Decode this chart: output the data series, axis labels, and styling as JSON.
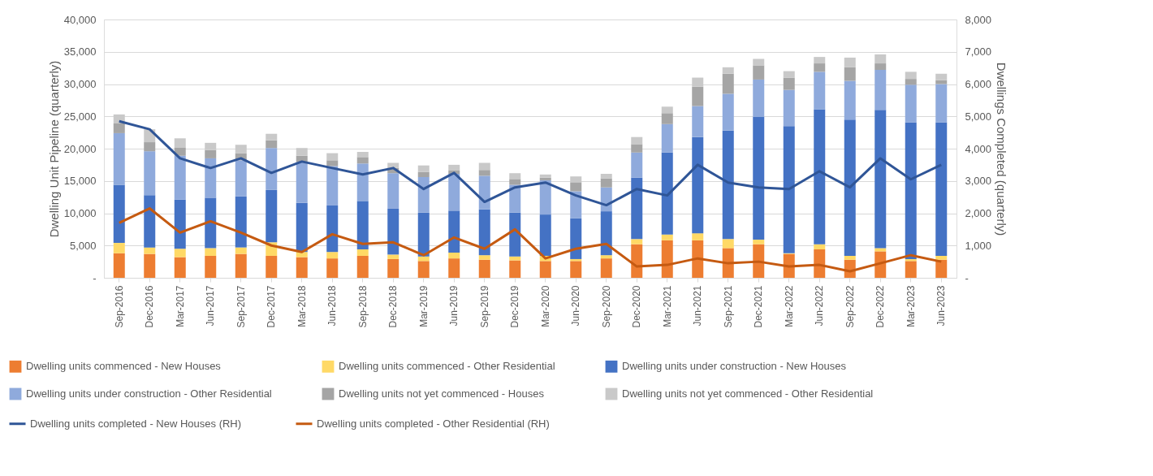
{
  "chart_data": {
    "type": "bar",
    "stacked": true,
    "categories": [
      "Sep-2016",
      "Dec-2016",
      "Mar-2017",
      "Jun-2017",
      "Sep-2017",
      "Dec-2017",
      "Mar-2018",
      "Jun-2018",
      "Sep-2018",
      "Dec-2018",
      "Mar-2019",
      "Jun-2019",
      "Sep-2019",
      "Dec-2019",
      "Mar-2020",
      "Jun-2020",
      "Sep-2020",
      "Dec-2020",
      "Mar-2021",
      "Jun-2021",
      "Sep-2021",
      "Dec-2021",
      "Mar-2022",
      "Jun-2022",
      "Sep-2022",
      "Dec-2022",
      "Mar-2023",
      "Jun-2023"
    ],
    "ylabel": "Dwelling Unit Pipeline (quarterly)",
    "y2label": "Dwellings Completed (quarterly)",
    "ylim": [
      0,
      40000
    ],
    "yticks": [
      {
        "value": 0,
        "label": "-"
      },
      {
        "value": 5000,
        "label": "5,000"
      },
      {
        "value": 10000,
        "label": "10,000"
      },
      {
        "value": 15000,
        "label": "15,000"
      },
      {
        "value": 20000,
        "label": "20,000"
      },
      {
        "value": 25000,
        "label": "25,000"
      },
      {
        "value": 30000,
        "label": "30,000"
      },
      {
        "value": 35000,
        "label": "35,000"
      },
      {
        "value": 40000,
        "label": "40,000"
      }
    ],
    "y2lim": [
      0,
      8000
    ],
    "y2ticks": [
      {
        "value": 0,
        "label": "-"
      },
      {
        "value": 1000,
        "label": "1,000"
      },
      {
        "value": 2000,
        "label": "2,000"
      },
      {
        "value": 3000,
        "label": "3,000"
      },
      {
        "value": 4000,
        "label": "4,000"
      },
      {
        "value": 5000,
        "label": "5,000"
      },
      {
        "value": 6000,
        "label": "6,000"
      },
      {
        "value": 7000,
        "label": "7,000"
      },
      {
        "value": 8000,
        "label": "8,000"
      }
    ],
    "grid": "y",
    "legend": "bottom",
    "series": [
      {
        "name": "Dwelling units commenced - New Houses",
        "color": "#ed7d31",
        "values": [
          3800,
          3700,
          3200,
          3400,
          3700,
          3400,
          3200,
          3000,
          3400,
          2900,
          2600,
          3000,
          2800,
          2700,
          2600,
          2600,
          3000,
          5200,
          5800,
          5800,
          4600,
          5200,
          3700,
          4400,
          2800,
          4100,
          2600,
          2800
        ]
      },
      {
        "name": "Dwelling units commenced - Other Residential",
        "color": "#ffd966",
        "values": [
          1600,
          1000,
          1300,
          1200,
          1000,
          2100,
          800,
          1000,
          1000,
          700,
          700,
          900,
          700,
          600,
          800,
          300,
          500,
          800,
          900,
          1100,
          1400,
          700,
          100,
          800,
          600,
          500,
          300,
          600
        ]
      },
      {
        "name": "Dwelling units under construction - New Houses",
        "color": "#4472c4",
        "values": [
          9000,
          8100,
          7600,
          7800,
          7900,
          8100,
          7600,
          7200,
          7500,
          7100,
          6800,
          6500,
          7100,
          6800,
          6400,
          6300,
          6800,
          9500,
          12700,
          14900,
          16800,
          19000,
          19700,
          20900,
          21100,
          21400,
          21200,
          20700
        ]
      },
      {
        "name": "Dwelling units under construction - Other Residential",
        "color": "#8faadc",
        "values": [
          8000,
          6800,
          6800,
          6100,
          5600,
          6500,
          6300,
          6100,
          5800,
          5500,
          5500,
          5700,
          5200,
          4300,
          5300,
          4200,
          3700,
          3900,
          4400,
          4800,
          5700,
          5800,
          5600,
          5800,
          6000,
          6200,
          5800,
          5900
        ]
      },
      {
        "name": "Dwelling units not yet commenced - Houses",
        "color": "#a5a5a5",
        "values": [
          1500,
          1400,
          1300,
          1300,
          1100,
          1200,
          1000,
          900,
          1000,
          800,
          800,
          500,
          900,
          900,
          400,
          1400,
          1400,
          1300,
          1700,
          3000,
          3100,
          2200,
          1900,
          1300,
          2100,
          1000,
          900,
          600
        ]
      },
      {
        "name": "Dwelling units not yet commenced - Other Residential",
        "color": "#c9c9c9",
        "values": [
          1400,
          2000,
          1400,
          1100,
          1300,
          1000,
          1200,
          1100,
          800,
          800,
          1000,
          900,
          1100,
          900,
          500,
          900,
          700,
          1100,
          1000,
          1400,
          1000,
          1000,
          1000,
          1000,
          1500,
          1400,
          1100,
          1000
        ]
      },
      {
        "name": "Dwelling units completed - New Houses (RH)",
        "type": "line",
        "axis": "y2",
        "color": "#2f5597",
        "values": [
          4850,
          4600,
          3700,
          3400,
          3700,
          3250,
          3600,
          3400,
          3200,
          3400,
          2750,
          3250,
          2350,
          2800,
          2950,
          2550,
          2250,
          2750,
          2550,
          3500,
          2950,
          2800,
          2750,
          3300,
          2800,
          3700,
          3050,
          3500
        ]
      },
      {
        "name": "Dwelling units completed - Other Residential (RH)",
        "type": "line",
        "axis": "y2",
        "color": "#c55a11",
        "values": [
          1700,
          2150,
          1400,
          1750,
          1400,
          1000,
          800,
          1350,
          1050,
          1100,
          700,
          1250,
          900,
          1500,
          600,
          900,
          1050,
          350,
          400,
          600,
          450,
          500,
          350,
          400,
          200,
          450,
          700,
          500
        ]
      }
    ]
  }
}
